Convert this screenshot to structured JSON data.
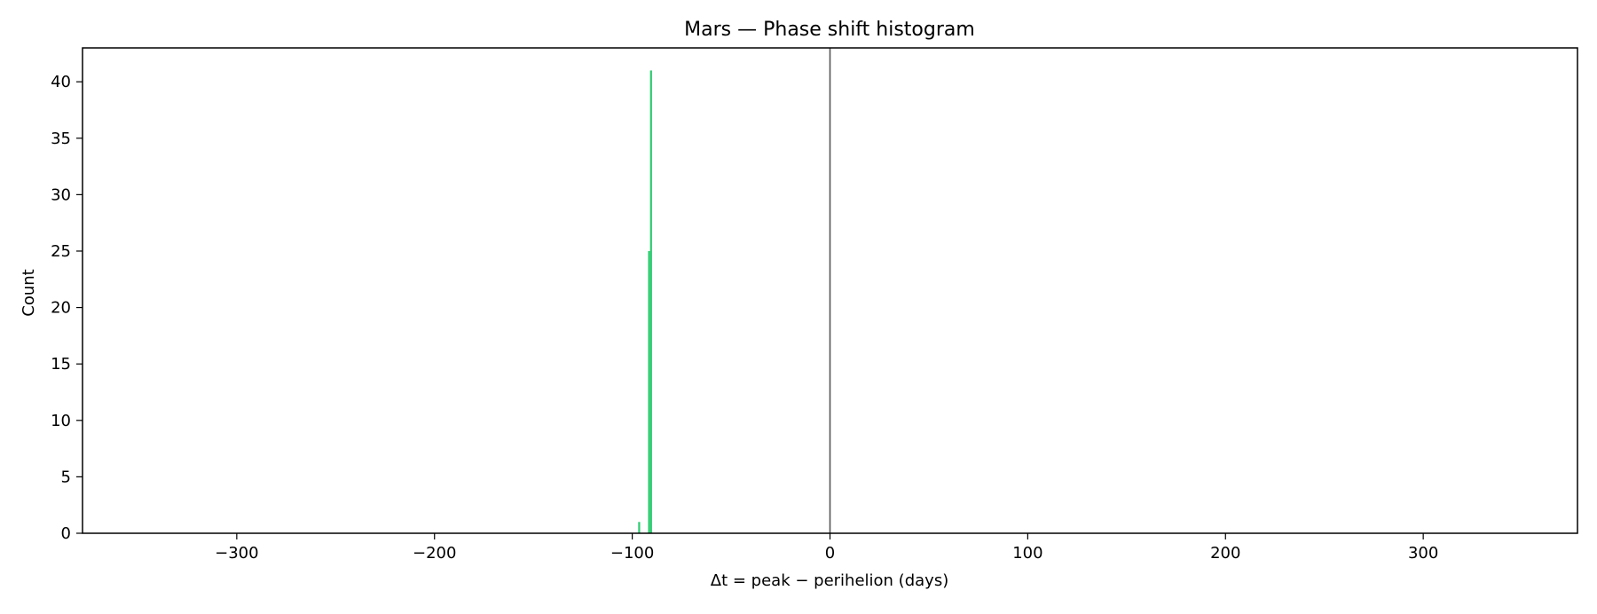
{
  "chart_data": {
    "type": "bar",
    "title": "Mars — Phase shift histogram",
    "xlabel": "Δt = peak − perihelion (days)",
    "ylabel": "Count",
    "xlim": [
      -378,
      378
    ],
    "ylim": [
      0,
      43
    ],
    "x_ticks": [
      -300,
      -200,
      -100,
      0,
      100,
      200,
      300
    ],
    "x_tick_labels": [
      "−300",
      "−200",
      "−100",
      "0",
      "100",
      "200",
      "300"
    ],
    "y_ticks": [
      0,
      5,
      10,
      15,
      20,
      25,
      30,
      35,
      40
    ],
    "y_tick_labels": [
      "0",
      "5",
      "10",
      "15",
      "20",
      "25",
      "30",
      "35",
      "40"
    ],
    "bin_width": 1,
    "bins": [
      {
        "x": -97,
        "count": 1
      },
      {
        "x": -92,
        "count": 25
      },
      {
        "x": -91,
        "count": 41
      }
    ],
    "reference_line": {
      "x": 0,
      "color": "#555555"
    },
    "bar_color": "#2ecc71",
    "grid": false
  }
}
